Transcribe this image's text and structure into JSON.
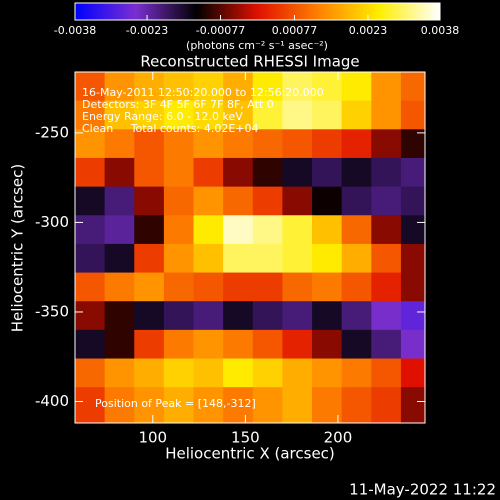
{
  "chart_data": {
    "type": "heatmap",
    "title": "Reconstructed RHESSI Image",
    "xlabel": "Heliocentric X (arcsec)",
    "ylabel": "Heliocentric Y (arcsec)",
    "annotations": [
      "16-May-2011 12:50:20.000 to 12:56:20.000",
      "Detectors: 3F 4F 5F 6F 7F 8F, Att 0",
      "Energy Range: 6.0 - 12.0 keV",
      "Clean     Total counts: 4.02E+04"
    ],
    "peak_label": "Position of Peak = [148,-312]",
    "footer": "11-May-2022 11:22",
    "colorbar_label": "(photons cm⁻² s⁻¹ asec⁻²)",
    "clim": [
      -0.0038,
      0.0038
    ],
    "colorbar_ticks": [
      -0.0038,
      -0.0023,
      -0.00077,
      0.00077,
      0.0023,
      0.0038
    ],
    "colormap": [
      "#0000ff",
      "#7a2fd0",
      "#000000",
      "#e01000",
      "#ff8000",
      "#ffee00",
      "#ffffff"
    ],
    "xlim": [
      58,
      247
    ],
    "xticks": [
      100,
      150,
      200
    ],
    "ylim": [
      -412,
      -216
    ],
    "yticks": [
      -250,
      -300,
      -350,
      -400
    ],
    "x": [
      66,
      82,
      98,
      114,
      130,
      146,
      162,
      178,
      194,
      210,
      226,
      242
    ],
    "y": [
      -224,
      -240,
      -256,
      -272,
      -288,
      -304,
      -320,
      -336,
      -352,
      -368,
      -384,
      -400
    ],
    "z": [
      [
        0.0008,
        0.0015,
        0.0018,
        0.002,
        0.0022,
        0.0018,
        0.0025,
        0.003,
        0.0028,
        0.0025,
        0.0015,
        0.001
      ],
      [
        0.0012,
        0.002,
        0.0022,
        0.0025,
        0.0023,
        0.002,
        0.0028,
        0.0032,
        0.003,
        0.0022,
        0.0015,
        0.0008
      ],
      [
        0.0015,
        0.0012,
        0.0008,
        0.0012,
        0.0015,
        0.0012,
        0.001,
        0.0008,
        0.0005,
        0.0002,
        -0.0005,
        -0.001
      ],
      [
        0.0005,
        -0.0005,
        0.0008,
        0.0012,
        0.0005,
        -0.0005,
        -0.001,
        -0.0015,
        -0.0018,
        -0.0015,
        -0.0018,
        -0.002
      ],
      [
        -0.0015,
        -0.002,
        -0.0005,
        0.001,
        0.0015,
        0.001,
        0.0005,
        -0.0005,
        -0.0012,
        -0.0018,
        -0.002,
        -0.0018
      ],
      [
        -0.002,
        -0.0022,
        -0.001,
        0.0012,
        0.0025,
        0.0035,
        0.0032,
        0.0028,
        0.002,
        0.001,
        -0.0005,
        -0.0015
      ],
      [
        -0.0018,
        -0.0015,
        0.0005,
        0.0015,
        0.002,
        0.003,
        0.003,
        0.0028,
        0.0025,
        0.0018,
        0.0008,
        -0.0005
      ],
      [
        0.0008,
        0.0012,
        0.0015,
        0.001,
        0.0008,
        0.0005,
        0.0005,
        0.001,
        0.0012,
        0.0008,
        0.0002,
        -0.0005
      ],
      [
        -0.0005,
        -0.001,
        -0.0015,
        -0.0018,
        -0.002,
        -0.0015,
        -0.0018,
        -0.002,
        -0.0015,
        -0.002,
        -0.0025,
        -0.0028
      ],
      [
        -0.0015,
        -0.001,
        0.0005,
        0.0012,
        0.0015,
        0.0012,
        0.0008,
        0.0002,
        -0.0005,
        -0.0015,
        -0.002,
        -0.0025
      ],
      [
        0.001,
        0.0015,
        0.0018,
        0.0022,
        0.002,
        0.0025,
        0.0022,
        0.0018,
        0.0015,
        0.0012,
        0.0008,
        0.0
      ],
      [
        0.0005,
        0.0012,
        0.0015,
        0.0018,
        0.0015,
        0.0012,
        0.0015,
        0.0018,
        0.0012,
        0.0008,
        0.0005,
        -0.0005
      ]
    ]
  }
}
